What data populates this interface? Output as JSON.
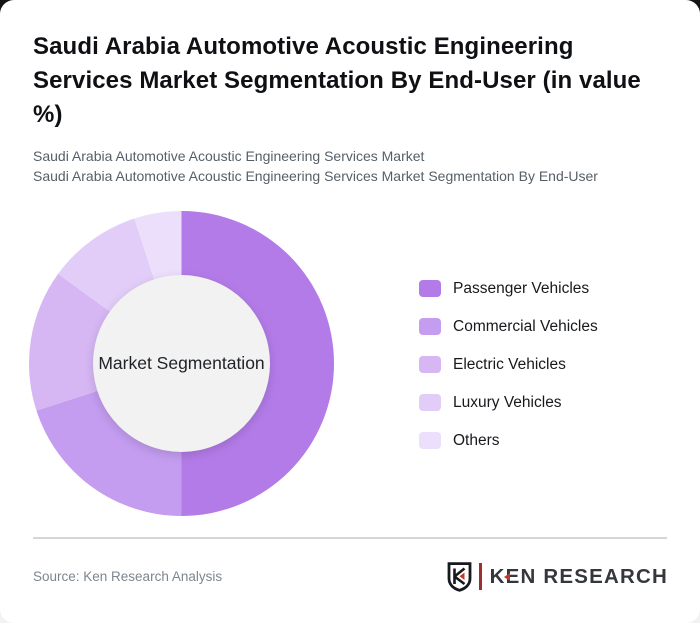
{
  "page": {
    "outer_background": "#141414",
    "card_background": "#ffffff"
  },
  "header": {
    "title": "Saudi Arabia Automotive Acoustic Engineering Services Market Segmentation By End-User (in value %)",
    "subtitles": [
      "Saudi Arabia Automotive Acoustic Engineering Services Market",
      "Saudi Arabia Automotive Acoustic Engineering Services Market Segmentation By End-User"
    ]
  },
  "chart_data": {
    "type": "pie",
    "donut": true,
    "unit": "value %",
    "center_label": "Market Segmentation",
    "legend_position": "right",
    "labels": [
      "Passenger Vehicles",
      "Commercial Vehicles",
      "Electric Vehicles",
      "Luxury Vehicles",
      "Others"
    ],
    "values": [
      50,
      20,
      15,
      10,
      5
    ],
    "colors": [
      "#b37be8",
      "#c49df0",
      "#d6b7f4",
      "#e2cdf8",
      "#ecdffb"
    ],
    "hole_color": "#f2f2f2"
  },
  "footer": {
    "source": "Source: Ken Research Analysis",
    "logo": {
      "shield_letter": "K",
      "brand": "KEN RESEARCH"
    }
  }
}
